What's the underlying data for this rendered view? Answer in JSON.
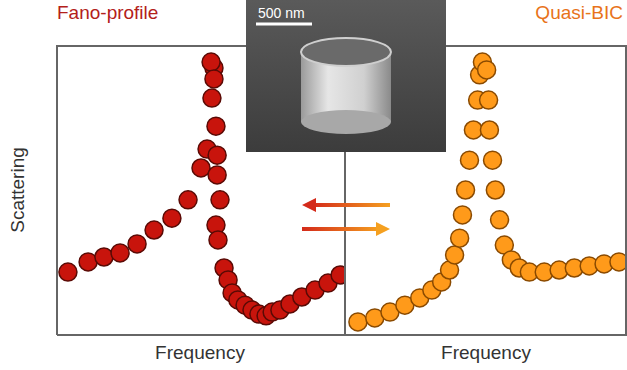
{
  "chart_data": [
    {
      "type": "scatter",
      "title": "Fano-profile",
      "x_label": "Frequency",
      "y_label": "Scattering",
      "color": "#c8140c",
      "marker": "circle",
      "tick_labels": false,
      "xlim": [
        0,
        10
      ],
      "ylim": [
        0,
        10
      ],
      "x": [
        0.38,
        1.08,
        1.63,
        2.19,
        2.78,
        3.37,
        3.99,
        4.55,
        5.0,
        5.21,
        5.38,
        5.45,
        5.35,
        5.45,
        5.52,
        5.56,
        5.56,
        5.66,
        5.52,
        5.59,
        5.8,
        5.94,
        6.08,
        6.28,
        6.53,
        6.77,
        7.01,
        7.26,
        7.47,
        7.74,
        8.09,
        8.5,
        8.96,
        9.41,
        9.83
      ],
      "values": [
        2.17,
        2.52,
        2.69,
        2.83,
        3.14,
        3.62,
        4.03,
        4.66,
        5.76,
        6.41,
        8.17,
        9.21,
        9.41,
        8.83,
        7.2,
        6.2,
        5.52,
        4.66,
        3.79,
        3.28,
        2.31,
        1.9,
        1.45,
        1.21,
        1.03,
        0.86,
        0.72,
        0.66,
        0.79,
        0.86,
        1.07,
        1.31,
        1.55,
        1.79,
        2.07
      ]
    },
    {
      "type": "scatter",
      "title": "Quasi-BIC",
      "x_label": "Frequency",
      "color": "#ff9a1a",
      "marker": "circle",
      "tick_labels": false,
      "xlim": [
        0,
        10
      ],
      "ylim": [
        0,
        10
      ],
      "x": [
        0.46,
        1.06,
        1.6,
        2.13,
        2.66,
        3.09,
        3.44,
        3.72,
        3.9,
        4.08,
        4.18,
        4.29,
        4.43,
        4.57,
        4.72,
        4.79,
        4.89,
        5.04,
        5.11,
        5.14,
        5.25,
        5.35,
        5.5,
        5.67,
        5.92,
        6.2,
        6.56,
        7.09,
        7.62,
        8.16,
        8.69,
        9.22,
        9.75
      ],
      "values": [
        0.45,
        0.59,
        0.79,
        1.03,
        1.28,
        1.55,
        1.83,
        2.24,
        2.76,
        3.34,
        4.14,
        5.0,
        6.03,
        7.07,
        8.1,
        8.97,
        9.41,
        9.14,
        8.1,
        7.07,
        6.03,
        5.0,
        3.97,
        3.1,
        2.59,
        2.31,
        2.17,
        2.17,
        2.24,
        2.31,
        2.38,
        2.45,
        2.52
      ]
    }
  ],
  "inset": {
    "scale_bar": "500 nm"
  }
}
